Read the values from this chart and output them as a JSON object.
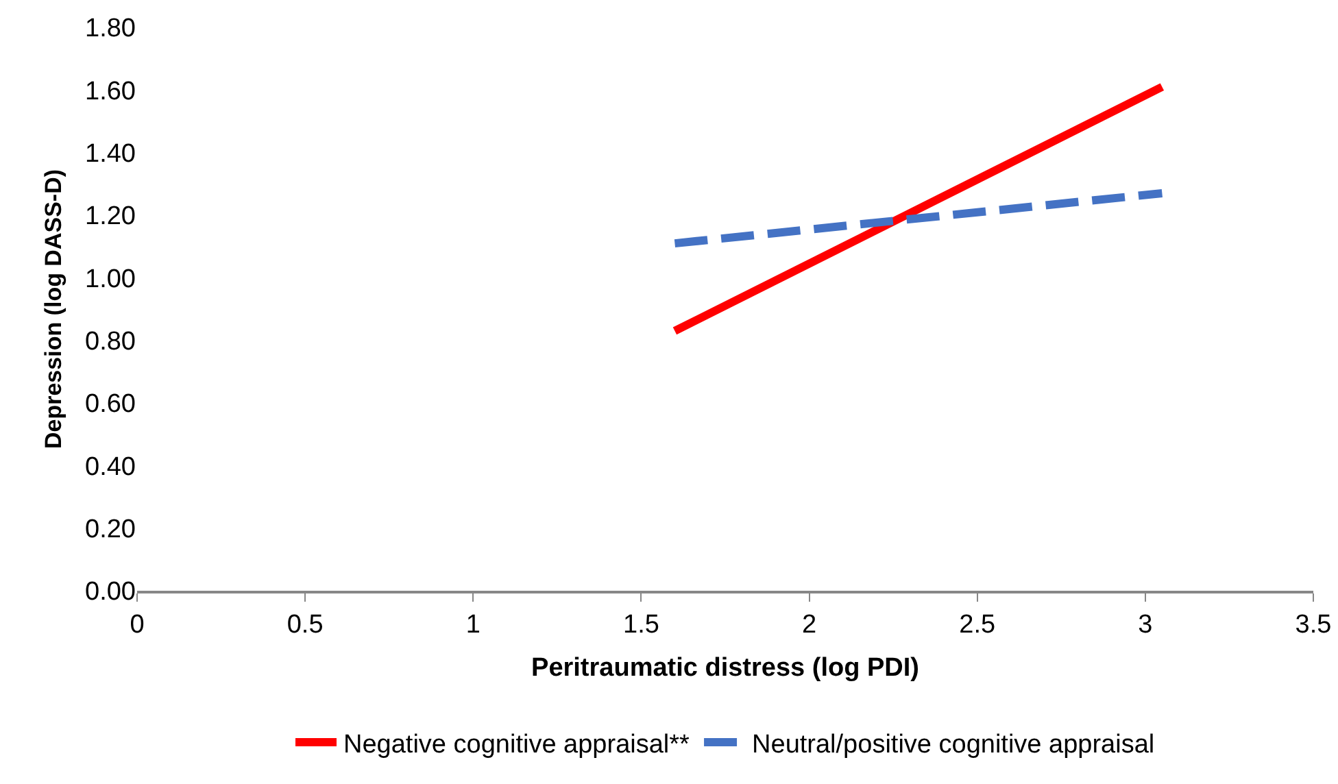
{
  "chart_data": {
    "type": "line",
    "xlabel": "Peritraumatic distress (log PDI)",
    "ylabel": "Depression (log DASS-D)",
    "x": [
      1.6,
      3.05
    ],
    "series": [
      {
        "name": "Negative cognitive appraisal**",
        "color": "#ff0000",
        "values": [
          0.83,
          1.61
        ],
        "line_style": "solid"
      },
      {
        "name": "Neutral/positive cognitive appraisal",
        "color": "#4472c4",
        "values": [
          1.11,
          1.27
        ],
        "line_style": "dashed"
      }
    ],
    "xlim": [
      0,
      3.5
    ],
    "xticks": [
      0,
      {
        "value": 0.5,
        "label": "0.5"
      },
      1,
      {
        "value": 1.5,
        "label": "1.5"
      },
      2,
      {
        "value": 2.5,
        "label": "2.5"
      },
      3,
      {
        "value": 3.5,
        "label": "3.5"
      }
    ],
    "ylim": [
      0,
      1.8
    ],
    "yticks": [
      {
        "value": 0,
        "label": "0.00"
      },
      {
        "value": 0.2,
        "label": "0.20"
      },
      {
        "value": 0.4,
        "label": "0.40"
      },
      {
        "value": 0.6,
        "label": "0.60"
      },
      {
        "value": 0.8,
        "label": "0.80"
      },
      {
        "value": 1,
        "label": "1.00"
      },
      {
        "value": 1.2,
        "label": "1.20"
      },
      {
        "value": 1.4,
        "label": "1.40"
      },
      {
        "value": 1.6,
        "label": "1.60"
      },
      {
        "value": 1.8,
        "label": "1.80"
      }
    ],
    "grid": false,
    "legend": "bottom",
    "marker": "none"
  }
}
